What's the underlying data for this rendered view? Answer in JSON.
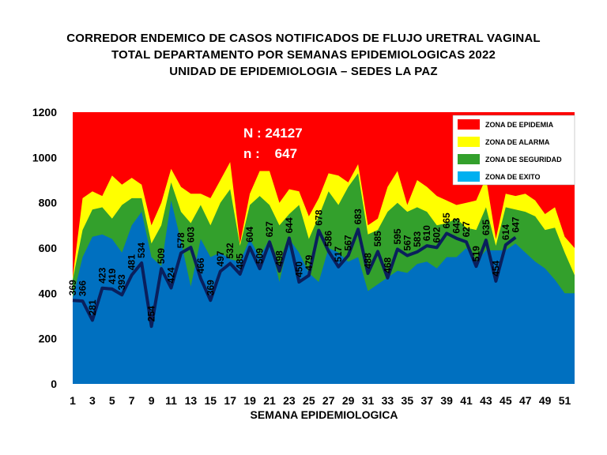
{
  "chart_data": {
    "type": "area",
    "title_lines": [
      "CORREDOR ENDEMICO DE CASOS NOTIFICADOS DE FLUJO URETRAL VAGINAL",
      "TOTAL DEPARTAMENTO POR SEMANAS EPIDEMIOLOGICAS 2022",
      "UNIDAD DE EPIDEMIOLOGIA – SEDES LA PAZ"
    ],
    "xlabel": "SEMANA EPIDEMIOLOGICA",
    "ylabel": "",
    "ylim": [
      0,
      1200
    ],
    "yticks": [
      0,
      200,
      400,
      600,
      800,
      1000,
      1200
    ],
    "xlim": [
      1,
      52
    ],
    "xticks": [
      1,
      3,
      5,
      7,
      9,
      11,
      13,
      15,
      17,
      19,
      21,
      23,
      25,
      27,
      29,
      31,
      33,
      35,
      37,
      39,
      41,
      43,
      45,
      47,
      49,
      51
    ],
    "grid": false,
    "legend_placement": "top-right",
    "legend": [
      {
        "label": "ZONA DE EPIDEMIA",
        "color": "#ff0000"
      },
      {
        "label": "ZONA DE ALARMA",
        "color": "#ffff00"
      },
      {
        "label": "ZONA DE  SEGURIDAD",
        "color": "#33a02c"
      },
      {
        "label": "ZONA DE  EXITO",
        "color": "#00b0f0"
      }
    ],
    "annotations": [
      "N : 24127",
      "n :    647"
    ],
    "x": [
      1,
      2,
      3,
      4,
      5,
      6,
      7,
      8,
      9,
      10,
      11,
      12,
      13,
      14,
      15,
      16,
      17,
      18,
      19,
      20,
      21,
      22,
      23,
      24,
      25,
      26,
      27,
      28,
      29,
      30,
      31,
      32,
      33,
      34,
      35,
      36,
      37,
      38,
      39,
      40,
      41,
      42,
      43,
      44,
      45,
      46,
      47,
      48,
      49,
      50,
      51,
      52
    ],
    "zones": {
      "alarma_upper": [
        470,
        820,
        850,
        830,
        920,
        880,
        910,
        880,
        700,
        800,
        950,
        870,
        840,
        840,
        820,
        900,
        980,
        620,
        840,
        940,
        940,
        800,
        860,
        850,
        740,
        820,
        930,
        920,
        890,
        970,
        700,
        730,
        870,
        940,
        790,
        900,
        870,
        830,
        810,
        790,
        800,
        810,
        910,
        640,
        840,
        830,
        840,
        810,
        750,
        780,
        650,
        600
      ],
      "seguridad_upper": [
        460,
        680,
        770,
        780,
        730,
        790,
        820,
        820,
        620,
        700,
        890,
        760,
        710,
        790,
        700,
        800,
        860,
        610,
        790,
        830,
        790,
        700,
        750,
        790,
        640,
        740,
        850,
        790,
        870,
        930,
        660,
        680,
        760,
        800,
        760,
        780,
        760,
        700,
        710,
        730,
        690,
        680,
        780,
        610,
        780,
        770,
        760,
        740,
        680,
        690,
        580,
        480
      ],
      "exito_upper": [
        380,
        560,
        650,
        660,
        640,
        580,
        700,
        760,
        560,
        520,
        810,
        630,
        430,
        640,
        560,
        580,
        550,
        540,
        640,
        560,
        640,
        450,
        640,
        580,
        490,
        450,
        600,
        580,
        540,
        560,
        410,
        440,
        470,
        500,
        490,
        530,
        540,
        510,
        560,
        560,
        600,
        540,
        590,
        590,
        590,
        620,
        580,
        540,
        510,
        460,
        400,
        400
      ]
    },
    "series": [
      {
        "name": "",
        "x": [
          1,
          2,
          3,
          4,
          5,
          6,
          7,
          8,
          9,
          10,
          11,
          12,
          13,
          14,
          15,
          16,
          17,
          18,
          19,
          20,
          21,
          22,
          23,
          24,
          25,
          26,
          27,
          28,
          29,
          30,
          31,
          32,
          33,
          34,
          35,
          36,
          37,
          38,
          39,
          40,
          41,
          42,
          43,
          44,
          45,
          46
        ],
        "values": [
          369,
          366,
          281,
          423,
          419,
          393,
          481,
          534,
          254,
          509,
          424,
          578,
          603,
          466,
          369,
          497,
          532,
          485,
          604,
          509,
          627,
          498,
          644,
          450,
          479,
          678,
          586,
          517,
          567,
          683,
          488,
          585,
          468,
          595,
          567,
          583,
          610,
          602,
          665,
          643,
          627,
          519,
          635,
          454,
          614,
          647
        ],
        "labels": [
          "369",
          "366",
          "281",
          "423",
          "419",
          "393",
          "481",
          "534",
          "254",
          "509",
          "424",
          "578",
          "603",
          "466",
          "369",
          "497",
          "532",
          "485",
          "604",
          "509",
          "627",
          "498",
          "644",
          "450",
          "479",
          "678",
          "586",
          "517",
          "567",
          "683",
          "488",
          "585",
          "468",
          "595",
          "567",
          "583",
          "610",
          "602",
          "665",
          "643",
          "627",
          "519",
          "635",
          "454",
          "614",
          "647"
        ]
      }
    ],
    "colors": {
      "epidemia": "#ff0000",
      "alarma": "#ffff00",
      "seguridad": "#33a02c",
      "exito": "#0070c0",
      "line": "#0a1f5c"
    }
  }
}
